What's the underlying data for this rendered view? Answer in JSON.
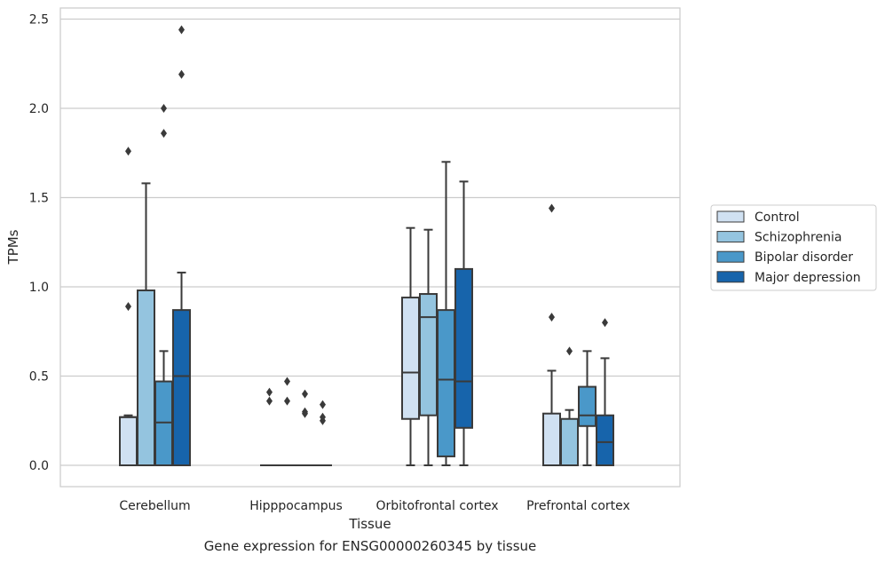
{
  "chart_data": {
    "type": "box",
    "caption": "Gene expression for ENSG00000260345 by tissue",
    "xlabel": "Tissue",
    "ylabel": "TPMs",
    "ylim": [
      -0.12,
      2.57
    ],
    "yticks": [
      0.0,
      0.5,
      1.0,
      1.5,
      2.0,
      2.5
    ],
    "ytick_labels": [
      "0.0",
      "0.5",
      "1.0",
      "1.5",
      "2.0",
      "2.5"
    ],
    "grid": "horizontal",
    "legend_position": "right",
    "categories": [
      "Cerebellum",
      "Hipppocampus",
      "Orbitofrontal cortex",
      "Prefrontal cortex"
    ],
    "series": [
      {
        "name": "Control",
        "color": "#d0e1f2",
        "boxes": [
          {
            "whisker_low": 0.0,
            "q1": 0.0,
            "median": 0.27,
            "q3": 0.27,
            "whisker_high": 0.28,
            "outliers": [
              0.89,
              1.76
            ]
          },
          {
            "whisker_low": 0.0,
            "q1": 0.0,
            "median": 0.0,
            "q3": 0.0,
            "whisker_high": 0.0,
            "outliers": [
              0.36,
              0.41
            ]
          },
          {
            "whisker_low": 0.0,
            "q1": 0.26,
            "median": 0.52,
            "q3": 0.94,
            "whisker_high": 1.33,
            "outliers": []
          },
          {
            "whisker_low": 0.0,
            "q1": 0.0,
            "median": 0.0,
            "q3": 0.29,
            "whisker_high": 0.53,
            "outliers": [
              0.83,
              1.44
            ]
          }
        ]
      },
      {
        "name": "Schizophrenia",
        "color": "#94c4df",
        "boxes": [
          {
            "whisker_low": 0.0,
            "q1": 0.0,
            "median": 0.0,
            "q3": 0.98,
            "whisker_high": 1.58,
            "outliers": []
          },
          {
            "whisker_low": 0.0,
            "q1": 0.0,
            "median": 0.0,
            "q3": 0.0,
            "whisker_high": 0.0,
            "outliers": [
              0.36,
              0.47
            ]
          },
          {
            "whisker_low": 0.0,
            "q1": 0.28,
            "median": 0.83,
            "q3": 0.96,
            "whisker_high": 1.32,
            "outliers": []
          },
          {
            "whisker_low": 0.0,
            "q1": 0.0,
            "median": 0.0,
            "q3": 0.26,
            "whisker_high": 0.31,
            "outliers": [
              0.64
            ]
          }
        ]
      },
      {
        "name": "Bipolar disorder",
        "color": "#4a98c9",
        "boxes": [
          {
            "whisker_low": 0.0,
            "q1": 0.0,
            "median": 0.24,
            "q3": 0.47,
            "whisker_high": 0.64,
            "outliers": [
              1.86,
              2.0
            ]
          },
          {
            "whisker_low": 0.0,
            "q1": 0.0,
            "median": 0.0,
            "q3": 0.0,
            "whisker_high": 0.0,
            "outliers": [
              0.29,
              0.3,
              0.4
            ]
          },
          {
            "whisker_low": 0.0,
            "q1": 0.05,
            "median": 0.48,
            "q3": 0.87,
            "whisker_high": 1.7,
            "outliers": []
          },
          {
            "whisker_low": 0.0,
            "q1": 0.22,
            "median": 0.28,
            "q3": 0.44,
            "whisker_high": 0.64,
            "outliers": []
          }
        ]
      },
      {
        "name": "Major depression",
        "color": "#1764ab",
        "boxes": [
          {
            "whisker_low": 0.0,
            "q1": 0.0,
            "median": 0.5,
            "q3": 0.87,
            "whisker_high": 1.08,
            "outliers": [
              2.19,
              2.44
            ]
          },
          {
            "whisker_low": 0.0,
            "q1": 0.0,
            "median": 0.0,
            "q3": 0.0,
            "whisker_high": 0.0,
            "outliers": [
              0.25,
              0.27,
              0.34
            ]
          },
          {
            "whisker_low": 0.0,
            "q1": 0.21,
            "median": 0.47,
            "q3": 1.1,
            "whisker_high": 1.59,
            "outliers": []
          },
          {
            "whisker_low": 0.0,
            "q1": 0.0,
            "median": 0.13,
            "q3": 0.28,
            "whisker_high": 0.6,
            "outliers": [
              0.8
            ]
          }
        ]
      }
    ]
  }
}
